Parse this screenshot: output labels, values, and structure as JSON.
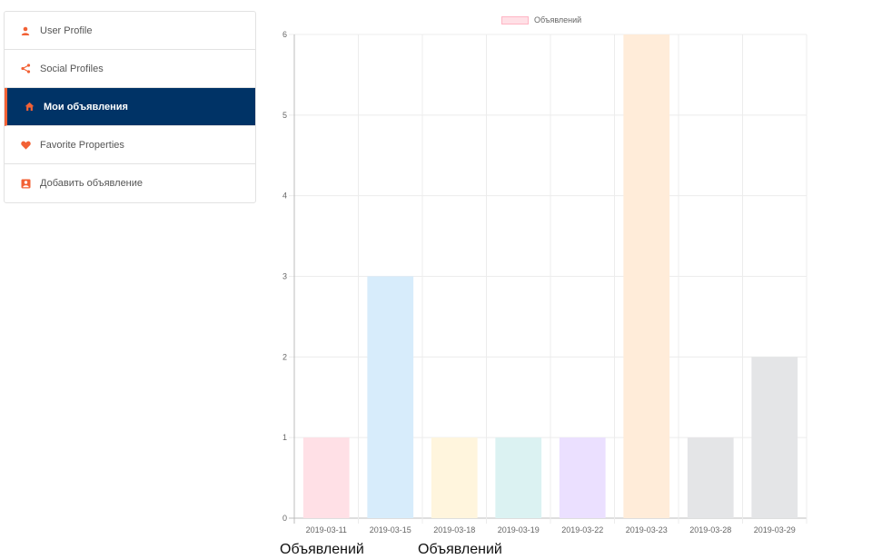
{
  "sidebar": {
    "items": [
      {
        "label": "User Profile",
        "icon": "user-icon",
        "active": false
      },
      {
        "label": "Social Profiles",
        "icon": "share-icon",
        "active": false
      },
      {
        "label": "Мои объявления",
        "icon": "home-icon",
        "active": true
      },
      {
        "label": "Favorite Properties",
        "icon": "heart-icon",
        "active": false
      },
      {
        "label": "Добавить объявление",
        "icon": "add-listing-icon",
        "active": false
      }
    ]
  },
  "colors": {
    "accent": "#f26135",
    "active_bg": "#003366"
  },
  "chart_data": {
    "type": "bar",
    "legend": "Объявлений",
    "legend_position": "top",
    "categories": [
      "2019-03-11",
      "2019-03-15",
      "2019-03-18",
      "2019-03-19",
      "2019-03-22",
      "2019-03-23",
      "2019-03-28",
      "2019-03-29"
    ],
    "series": [
      {
        "name": "Объявлений",
        "values": [
          1,
          3,
          1,
          1,
          1,
          6,
          1,
          2
        ]
      }
    ],
    "bar_colors": [
      "#ffe0e6",
      "#d7ecfb",
      "#fff5dd",
      "#dbf2f2",
      "#ebe0ff",
      "#ffecd9",
      "#e4e5e7",
      "#e4e5e7"
    ],
    "yticks": [
      "0",
      "1",
      "2",
      "3",
      "4",
      "5",
      "6"
    ],
    "ylim": [
      0,
      6
    ],
    "grid": true
  },
  "footer_labels": [
    "Объявлений",
    "Объявлений"
  ]
}
